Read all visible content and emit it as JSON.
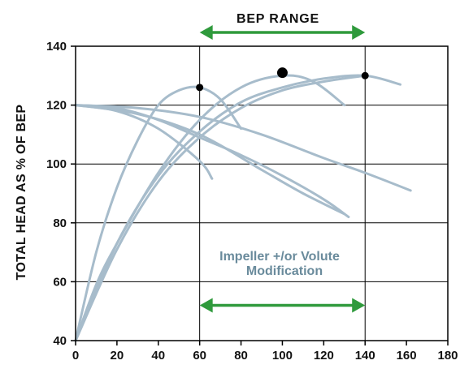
{
  "chart_data": {
    "type": "line",
    "title": "",
    "xlabel": "",
    "ylabel": "TOTAL HEAD AS % OF BEP",
    "xlim": [
      0,
      180
    ],
    "ylim": [
      40,
      140
    ],
    "x_ticks": [
      0,
      20,
      40,
      60,
      80,
      100,
      120,
      140,
      160,
      180
    ],
    "y_ticks": [
      40,
      60,
      80,
      100,
      120,
      140
    ],
    "grid": true,
    "colors": {
      "curve": "#a7bccb",
      "arrow": "#2f9a3c",
      "note": "#6a8b9c",
      "grid": "#000000",
      "dot": "#000000"
    },
    "series": [
      {
        "points": [
          [
            0,
            40
          ],
          [
            10,
            70
          ],
          [
            20,
            92
          ],
          [
            30,
            108
          ],
          [
            40,
            120
          ],
          [
            50,
            125
          ],
          [
            60,
            126
          ],
          [
            70,
            122
          ],
          [
            80,
            112
          ]
        ]
      },
      {
        "points": [
          [
            0,
            120
          ],
          [
            20,
            118
          ],
          [
            40,
            112
          ],
          [
            60,
            101
          ],
          [
            66,
            95
          ]
        ]
      },
      {
        "points": [
          [
            0,
            40
          ],
          [
            10,
            59
          ],
          [
            20,
            73
          ],
          [
            40,
            97
          ],
          [
            60,
            115
          ],
          [
            80,
            126
          ],
          [
            100,
            130
          ],
          [
            115,
            128
          ],
          [
            130,
            120
          ]
        ]
      },
      {
        "points": [
          [
            0,
            120
          ],
          [
            20,
            119
          ],
          [
            40,
            115
          ],
          [
            60,
            109
          ],
          [
            80,
            103
          ],
          [
            100,
            96
          ],
          [
            120,
            88
          ],
          [
            132,
            82
          ]
        ]
      },
      {
        "points": [
          [
            0,
            40
          ],
          [
            20,
            73
          ],
          [
            40,
            96
          ],
          [
            60,
            111
          ],
          [
            80,
            121
          ],
          [
            100,
            126
          ],
          [
            120,
            129
          ],
          [
            140,
            130
          ],
          [
            157,
            127
          ]
        ]
      },
      {
        "points": [
          [
            0,
            120
          ],
          [
            30,
            119
          ],
          [
            60,
            116
          ],
          [
            90,
            110
          ],
          [
            120,
            102
          ],
          [
            140,
            97
          ],
          [
            162,
            91
          ]
        ]
      },
      {
        "points": [
          [
            0,
            40
          ],
          [
            20,
            71
          ],
          [
            40,
            94
          ],
          [
            60,
            109
          ],
          [
            80,
            119
          ],
          [
            100,
            125
          ],
          [
            120,
            128
          ],
          [
            140,
            130
          ]
        ]
      },
      {
        "points": [
          [
            0,
            120
          ],
          [
            30,
            117
          ],
          [
            60,
            110
          ],
          [
            90,
            98
          ],
          [
            110,
            90
          ],
          [
            130,
            83
          ]
        ]
      }
    ],
    "bep_points": [
      {
        "x": 60,
        "y": 126,
        "size": "small"
      },
      {
        "x": 100,
        "y": 131,
        "size": "large"
      },
      {
        "x": 140,
        "y": 130,
        "size": "small"
      }
    ],
    "annotations": {
      "bep_range": {
        "label": "BEP RANGE",
        "x_from": 60,
        "x_to": 140
      },
      "modification": {
        "line1": "Impeller +/or Volute",
        "line2": "Modification",
        "x_from": 60,
        "x_to": 140,
        "y": 52
      }
    }
  }
}
